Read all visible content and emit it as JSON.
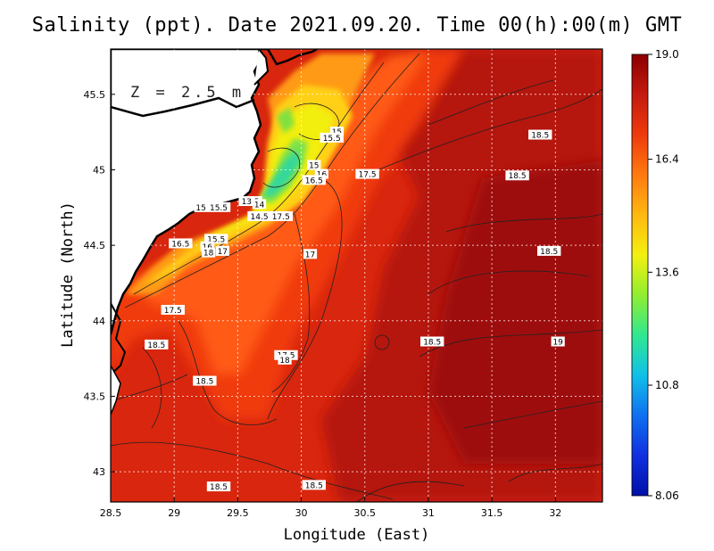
{
  "title": "Salinity (ppt). Date 2021.09.20. Time 00(h):00(m) GMT",
  "depth_label": "Z = 2.5 m",
  "xlabel": "Longitude (East)",
  "ylabel": "Latitude (North)",
  "x_ticks": [
    "28.5",
    "29",
    "29.5",
    "30",
    "30.5",
    "31",
    "31.5",
    "32"
  ],
  "x_tick_values": [
    28.5,
    29,
    29.5,
    30,
    30.5,
    31,
    31.5,
    32
  ],
  "y_ticks": [
    "43",
    "43.5",
    "44",
    "44.5",
    "45",
    "45.5"
  ],
  "y_tick_values": [
    43,
    43.5,
    44,
    44.5,
    45,
    45.5
  ],
  "colorbar": {
    "labels": [
      "19.0",
      "16.4",
      "13.6",
      "10.8",
      "8.06"
    ],
    "values": [
      19.0,
      16.4,
      13.6,
      10.8,
      8.06
    ],
    "min": 8.06,
    "max": 19.0,
    "colors": [
      "#8b0000",
      "#c41a10",
      "#ee3a0c",
      "#ff7a10",
      "#ffb810",
      "#f4f010",
      "#90ee30",
      "#30e890",
      "#10c0e8",
      "#1070f0",
      "#1030e0",
      "#0010a8"
    ]
  },
  "contour_labels": [
    {
      "text": "15",
      "lon": 30.28,
      "lat": 45.25
    },
    {
      "text": "15.5",
      "lon": 30.24,
      "lat": 45.21
    },
    {
      "text": "18.5",
      "lon": 31.88,
      "lat": 45.23
    },
    {
      "text": "15",
      "lon": 30.1,
      "lat": 45.03
    },
    {
      "text": "16",
      "lon": 30.16,
      "lat": 44.97
    },
    {
      "text": "16.5",
      "lon": 30.1,
      "lat": 44.93
    },
    {
      "text": "17.5",
      "lon": 30.52,
      "lat": 44.97
    },
    {
      "text": "18.5",
      "lon": 31.7,
      "lat": 44.96
    },
    {
      "text": "13.5",
      "lon": 29.6,
      "lat": 44.79
    },
    {
      "text": "14",
      "lon": 29.67,
      "lat": 44.77
    },
    {
      "text": "15",
      "lon": 29.21,
      "lat": 44.75
    },
    {
      "text": "15.5",
      "lon": 29.35,
      "lat": 44.75
    },
    {
      "text": "14.5",
      "lon": 29.67,
      "lat": 44.69
    },
    {
      "text": "17.5",
      "lon": 29.84,
      "lat": 44.69
    },
    {
      "text": "15.5",
      "lon": 29.33,
      "lat": 44.54
    },
    {
      "text": "16.5",
      "lon": 29.05,
      "lat": 44.51
    },
    {
      "text": "16",
      "lon": 29.26,
      "lat": 44.49
    },
    {
      "text": "17",
      "lon": 29.38,
      "lat": 44.46
    },
    {
      "text": "18",
      "lon": 29.27,
      "lat": 44.45
    },
    {
      "text": "17",
      "lon": 30.07,
      "lat": 44.44
    },
    {
      "text": "18.5",
      "lon": 31.95,
      "lat": 44.46
    },
    {
      "text": "17.5",
      "lon": 28.99,
      "lat": 44.07
    },
    {
      "text": "18.5",
      "lon": 28.86,
      "lat": 43.84
    },
    {
      "text": "18.5",
      "lon": 31.03,
      "lat": 43.86
    },
    {
      "text": "19",
      "lon": 32.02,
      "lat": 43.86
    },
    {
      "text": "17.5",
      "lon": 29.88,
      "lat": 43.77
    },
    {
      "text": "18",
      "lon": 29.87,
      "lat": 43.74
    },
    {
      "text": "18.5",
      "lon": 29.24,
      "lat": 43.6
    },
    {
      "text": "18.5",
      "lon": 29.35,
      "lat": 42.9
    },
    {
      "text": "18.5",
      "lon": 30.1,
      "lat": 42.91
    }
  ]
}
